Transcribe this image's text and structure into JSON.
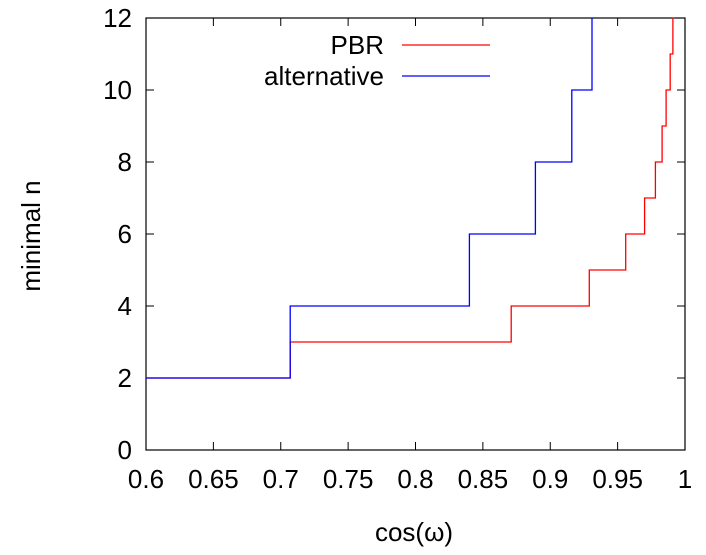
{
  "chart_data": {
    "type": "line",
    "title": "",
    "xlabel": "cos(ω)",
    "ylabel": "minimal n",
    "xlim": [
      0.6,
      1.0
    ],
    "ylim": [
      0,
      12
    ],
    "grid": false,
    "legend_position": "top-right",
    "x_ticks": [
      "0.6",
      "0.65",
      "0.7",
      "0.75",
      "0.8",
      "0.85",
      "0.9",
      "0.95",
      "1"
    ],
    "y_ticks": [
      "0",
      "2",
      "4",
      "6",
      "8",
      "10",
      "12"
    ],
    "series": [
      {
        "name": "PBR",
        "color": "#ff0000",
        "x": [
          0.6,
          0.707,
          0.707,
          0.871,
          0.871,
          0.929,
          0.929,
          0.956,
          0.956,
          0.97,
          0.97,
          0.978,
          0.978,
          0.983,
          0.983,
          0.986,
          0.986,
          0.989,
          0.989,
          0.991,
          0.991,
          0.992
        ],
        "y": [
          2,
          2,
          3,
          3,
          4,
          4,
          5,
          5,
          6,
          6,
          7,
          7,
          8,
          8,
          9,
          9,
          10,
          10,
          11,
          11,
          12,
          12
        ]
      },
      {
        "name": "alternative",
        "color": "#0000ff",
        "x": [
          0.6,
          0.707,
          0.707,
          0.84,
          0.84,
          0.889,
          0.889,
          0.916,
          0.916,
          0.931,
          0.931
        ],
        "y": [
          2,
          2,
          4,
          4,
          6,
          6,
          8,
          8,
          10,
          10,
          12
        ]
      }
    ]
  }
}
